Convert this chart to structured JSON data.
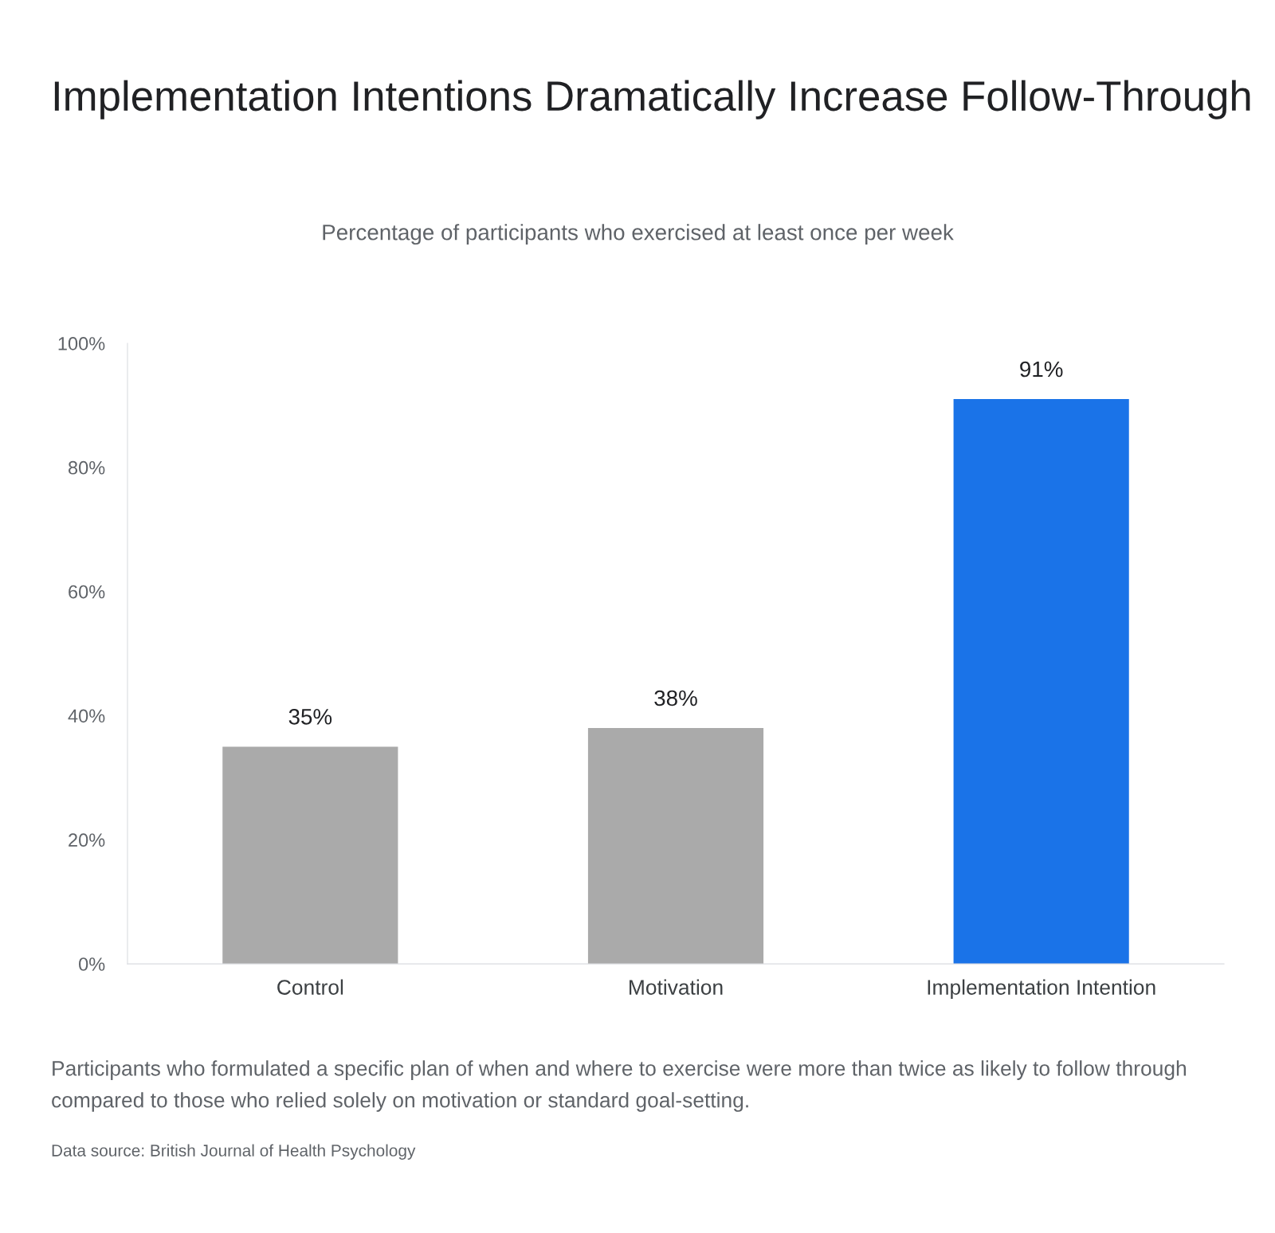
{
  "chart_data": {
    "type": "bar",
    "title": "Implementation Intentions Dramatically Increase Follow-Through",
    "subtitle": "Percentage of participants who exercised at least once per week",
    "categories": [
      "Control",
      "Motivation",
      "Implementation Intention"
    ],
    "values": [
      35,
      38,
      91
    ],
    "colors": [
      "#aaaaaa",
      "#aaaaaa",
      "#1a73e8"
    ],
    "ylim": [
      0,
      100
    ],
    "yticks": [
      {
        "value": 0,
        "label": "0%"
      },
      {
        "value": 20,
        "label": "20%"
      },
      {
        "value": 40,
        "label": "40%"
      },
      {
        "value": 60,
        "label": "60%"
      },
      {
        "value": 80,
        "label": "80%"
      },
      {
        "value": 100,
        "label": "100%"
      }
    ],
    "value_labels": [
      "35%",
      "38%",
      "91%"
    ],
    "grid": false,
    "legend": false,
    "annotations": [
      "Participants who formulated a specific plan of when and where to exercise were more than twice as likely to follow through compared to those who relied solely on motivation or standard goal-setting.",
      "Data source: British Journal of Health Psychology"
    ]
  }
}
